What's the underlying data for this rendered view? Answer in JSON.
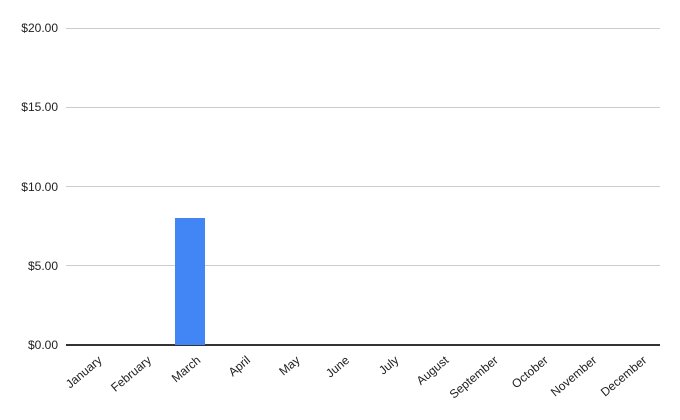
{
  "chart_data": {
    "type": "bar",
    "title": "",
    "xlabel": "",
    "ylabel": "",
    "categories": [
      "January",
      "February",
      "March",
      "April",
      "May",
      "June",
      "July",
      "August",
      "September",
      "October",
      "November",
      "December"
    ],
    "values": [
      0,
      0,
      8,
      0,
      0,
      0,
      0,
      0,
      0,
      0,
      0,
      0
    ],
    "ylim": [
      0,
      20
    ],
    "yticks": [
      {
        "value": 0,
        "label": "$0.00"
      },
      {
        "value": 5,
        "label": "$5.00"
      },
      {
        "value": 10,
        "label": "$10.00"
      },
      {
        "value": 15,
        "label": "$15.00"
      },
      {
        "value": 20,
        "label": "$20.00"
      }
    ],
    "grid": true,
    "legend": "none",
    "x_label_rotation_deg": -40,
    "colors": {
      "bar": "#4285f4",
      "gridline": "#cccccc",
      "axis_line": "#333333",
      "label_text": "#1f1f1f",
      "background": "#ffffff"
    }
  }
}
